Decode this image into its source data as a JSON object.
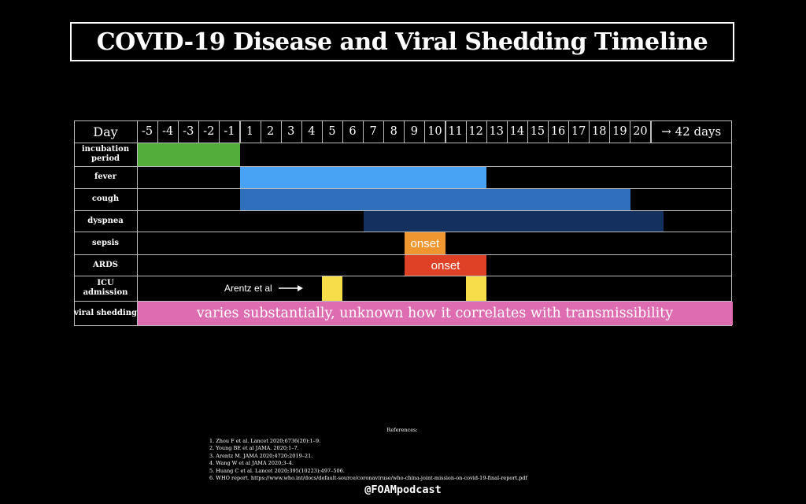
{
  "title": "COVID-19 Disease and Viral Shedding Timeline",
  "grid": {
    "corner_label": "Day",
    "days": [
      "-5",
      "-4",
      "-3",
      "-2",
      "-1",
      "1",
      "2",
      "3",
      "4",
      "5",
      "6",
      "7",
      "8",
      "9",
      "10",
      "11",
      "12",
      "13",
      "14",
      "15",
      "16",
      "17",
      "18",
      "19",
      "20"
    ],
    "end_label": "→ 42 days"
  },
  "rows": [
    {
      "label": "incubation period",
      "color": "#52ad3a",
      "start_day": -5,
      "end_day": 1,
      "text": ""
    },
    {
      "label": "fever",
      "color": "#48a3f5",
      "start_day": 1,
      "end_day": 13,
      "text": ""
    },
    {
      "label": "cough",
      "color": "#2f6fbb",
      "start_day": 1,
      "end_day": 20,
      "text": ""
    },
    {
      "label": "dyspnea",
      "color": "#13305f",
      "start_day": 7,
      "end_day": 21,
      "text": ""
    },
    {
      "label": "sepsis",
      "color": "#ef9630",
      "start_day": 9,
      "end_day": 11,
      "text": "onset"
    },
    {
      "label": "ARDS",
      "color": "#de4126",
      "start_day": 9,
      "end_day": 13,
      "text": "onset"
    },
    {
      "label": "ICU admission",
      "color": "#f7dd4a",
      "segments": [
        [
          5,
          6
        ],
        [
          12,
          13
        ]
      ],
      "note": "Arentz et al",
      "text": ""
    },
    {
      "label": "viral shedding",
      "color": "#dd6db0",
      "start_day": -5,
      "end_day": 42,
      "text": "varies substantially, unknown how it correlates with transmissibility"
    }
  ],
  "references": {
    "heading": "References:",
    "items": [
      "1. Zhou F et al. Lancet 2020;6736(20):1–9.",
      "2. Young BE et al JAMA. 2020;1–7.",
      "3. Arentz M. JAMA 2020;4720:2019–21.",
      "4. Wang W et al JAMA 2020;3–4.",
      "5. Huang C et al. Lancet 2020;395(10223):497–506.",
      "6. WHO report. https://www.who.int/docs/default-source/coronaviruse/who-china-joint-mission-on-covid-19-final-report.pdf"
    ]
  },
  "handle": "@FOAMpodcast"
}
